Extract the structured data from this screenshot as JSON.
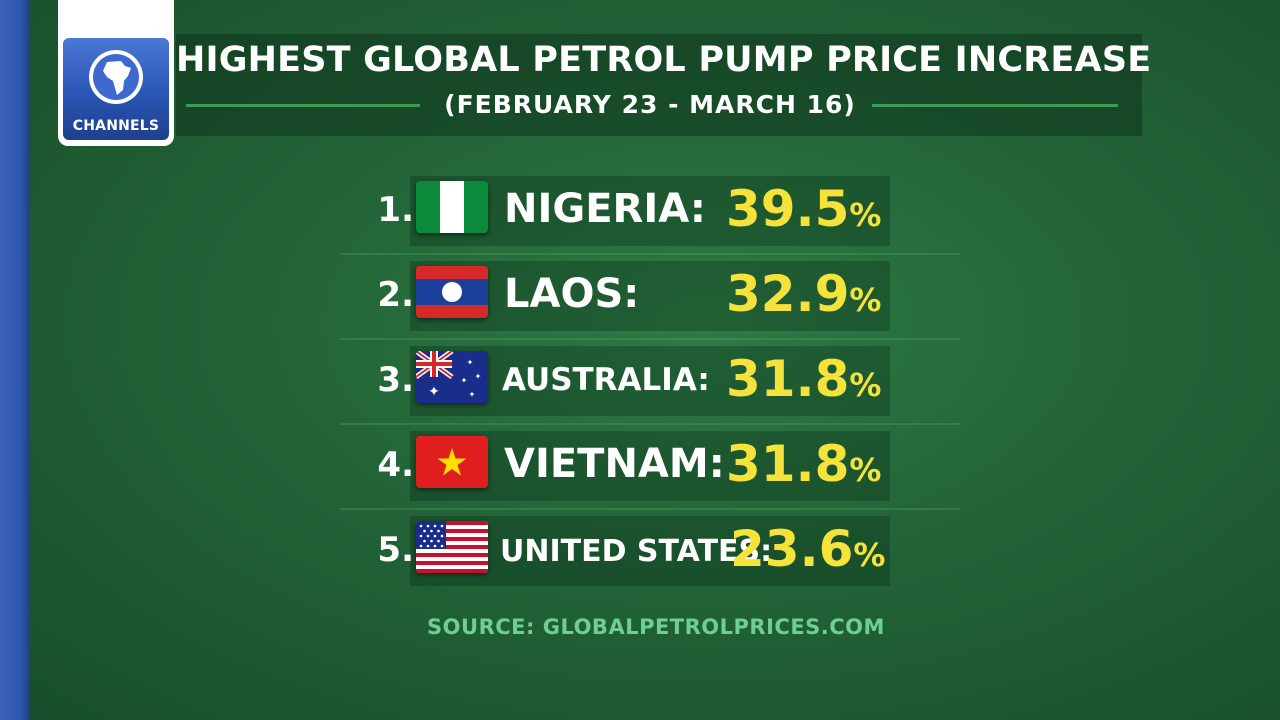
{
  "logo": {
    "text": "CHANNELS"
  },
  "header": {
    "title": "HIGHEST GLOBAL PETROL PUMP PRICE INCREASE",
    "subtitle": "(FEBRUARY 23 - MARCH 16)"
  },
  "rankings": [
    {
      "rank": "1.",
      "country": "NIGERIA:",
      "value": "39.5",
      "unit": "%",
      "flag": "nigeria-flag-icon"
    },
    {
      "rank": "2.",
      "country": "LAOS:",
      "value": "32.9",
      "unit": "%",
      "flag": "laos-flag-icon"
    },
    {
      "rank": "3.",
      "country": "AUSTRALIA:",
      "value": "31.8",
      "unit": "%",
      "flag": "australia-flag-icon"
    },
    {
      "rank": "4.",
      "country": "VIETNAM:",
      "value": "31.8",
      "unit": "%",
      "flag": "vietnam-flag-icon"
    },
    {
      "rank": "5.",
      "country": "UNITED STATES:",
      "value": "23.6",
      "unit": "%",
      "flag": "usa-flag-icon"
    }
  ],
  "source": "SOURCE: GLOBALPETROLPRICES.COM",
  "colors": {
    "background": "#226337",
    "value": "#f5e23a",
    "source": "#6fcf92",
    "left_bar": "#2e57ad"
  }
}
